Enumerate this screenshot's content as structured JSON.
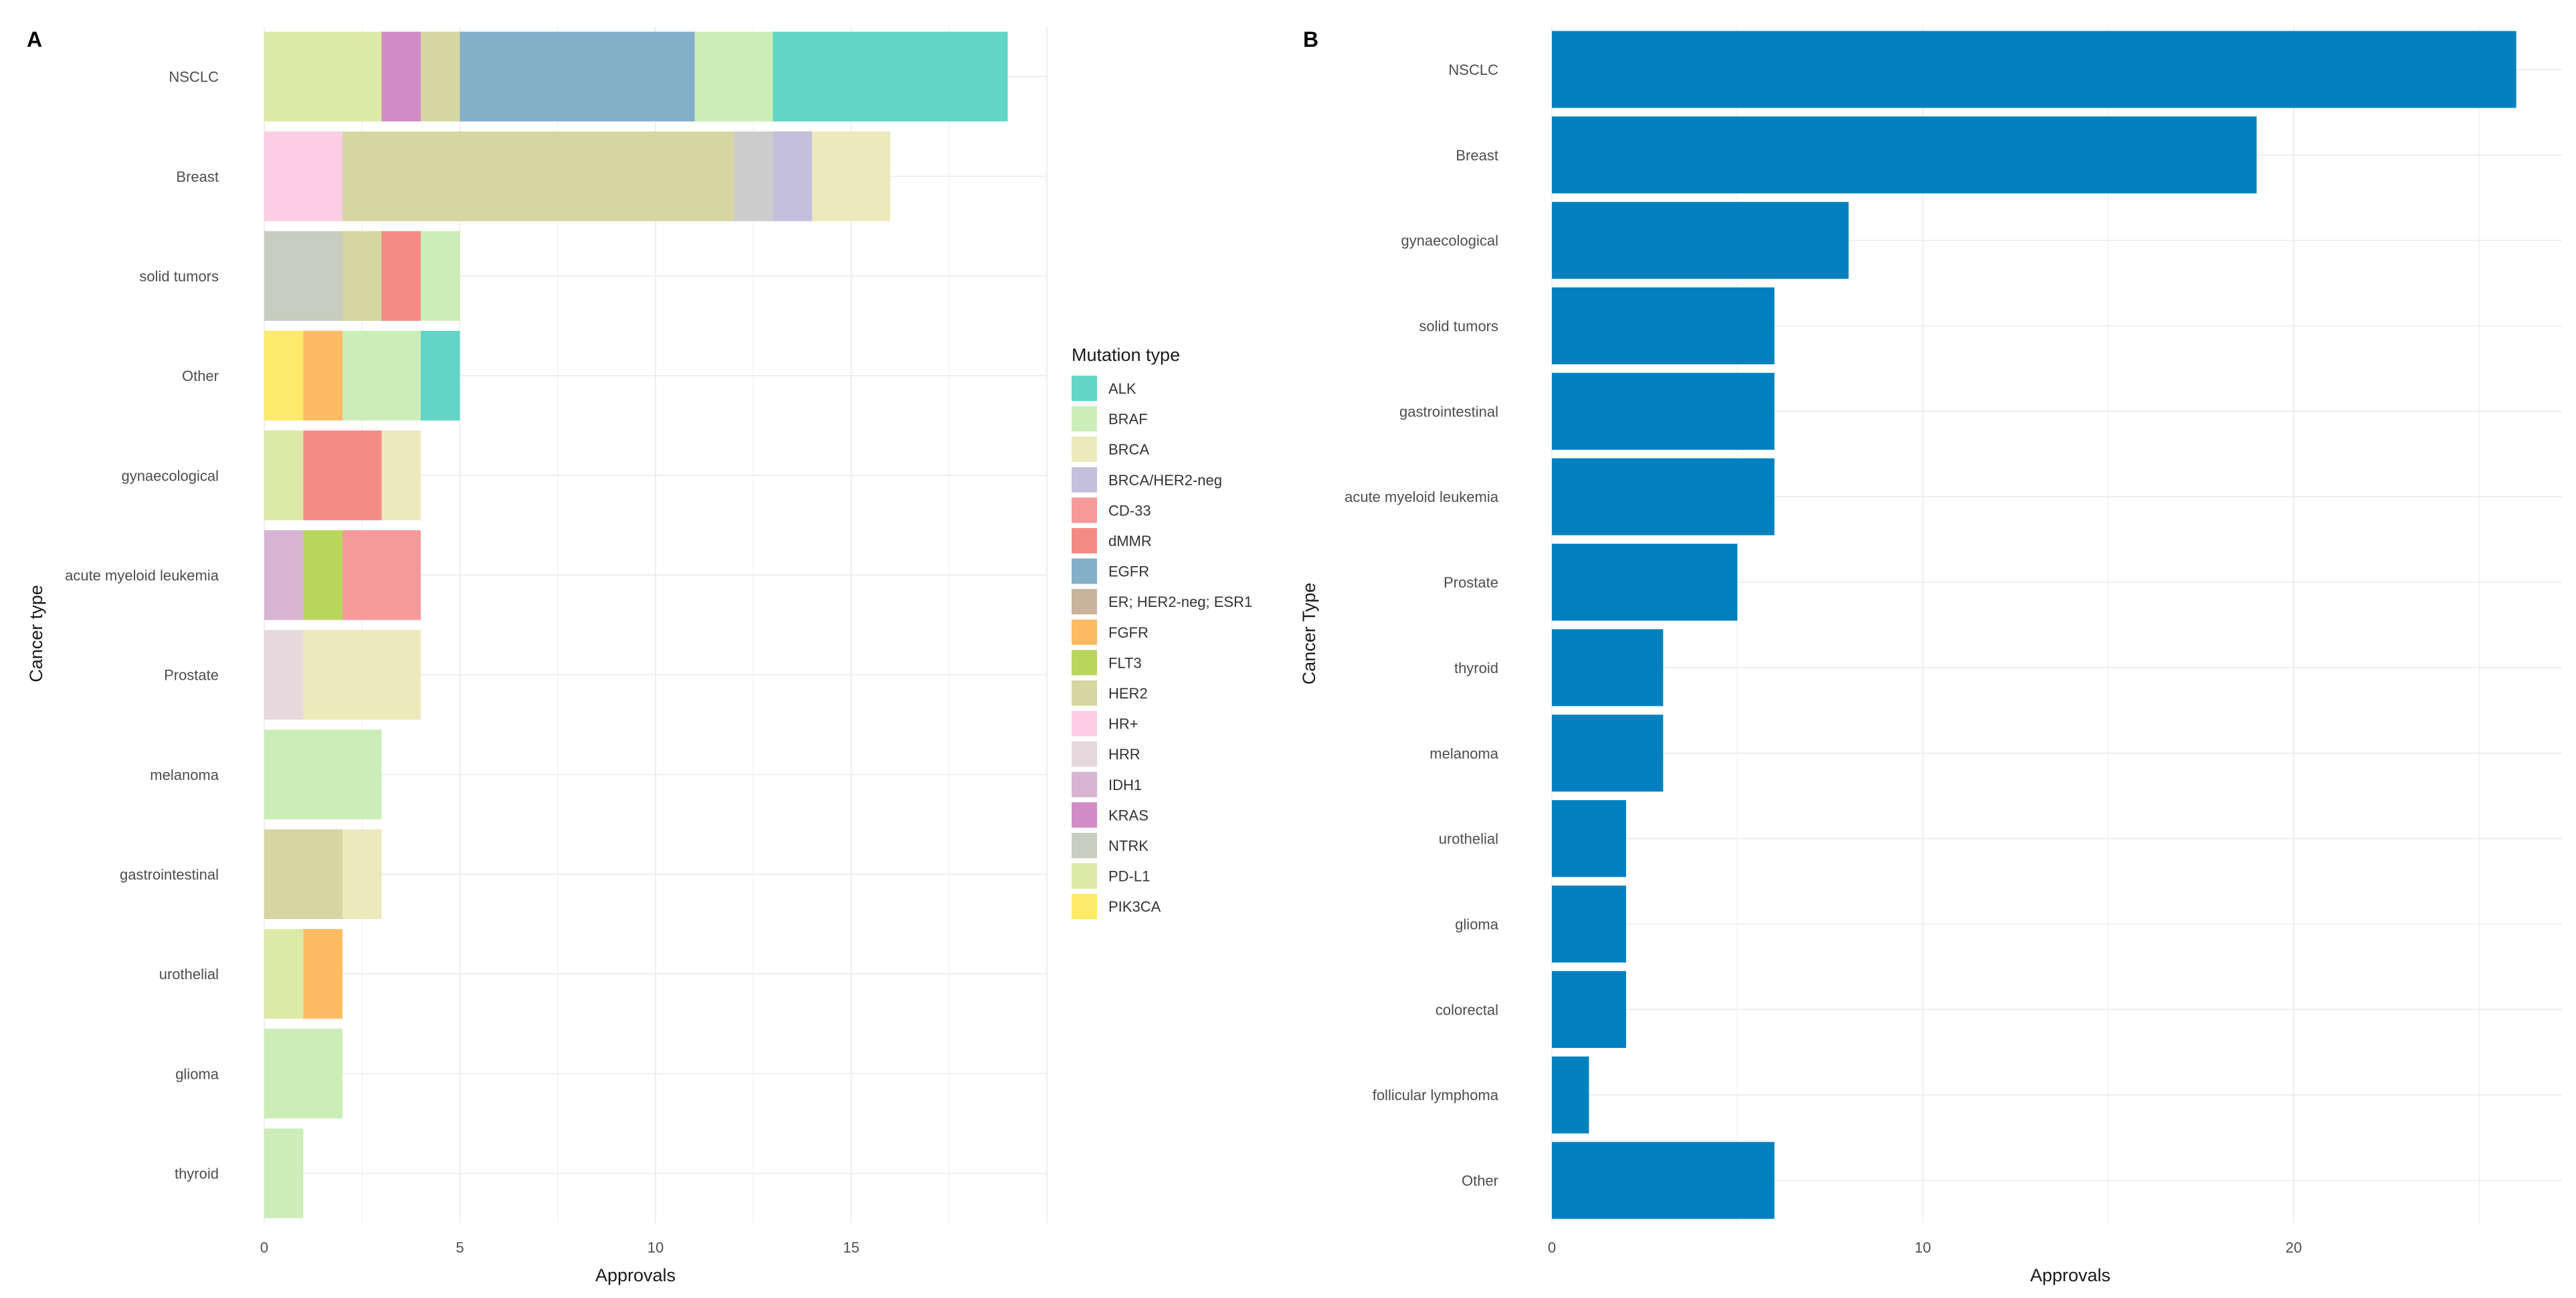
{
  "chart_data": [
    {
      "panel": "A",
      "type": "bar",
      "orientation": "horizontal",
      "stacked": true,
      "categories": [
        "NSCLC",
        "Breast",
        "solid tumors",
        "Other",
        "gynaecological",
        "acute myeloid leukemia",
        "Prostate",
        "melanoma",
        "gastrointestinal",
        "urothelial",
        "glioma",
        "thyroid"
      ],
      "segments": [
        [
          {
            "type": "PD-L1",
            "value": 3
          },
          {
            "type": "KRAS",
            "value": 1
          },
          {
            "type": "HER2",
            "value": 1
          },
          {
            "type": "EGFR",
            "value": 6
          },
          {
            "type": "BRAF",
            "value": 2
          },
          {
            "type": "ALK",
            "value": 6
          }
        ],
        [
          {
            "type": "HR+",
            "value": 2
          },
          {
            "type": "HER2",
            "value": 10
          },
          {
            "type": "ER+ HER2-neg ESR1",
            "value": 1
          },
          {
            "type": "BRCA/HER2-neg",
            "value": 1
          },
          {
            "type": "BRCA",
            "value": 2
          }
        ],
        [
          {
            "type": "NTRK",
            "value": 2
          },
          {
            "type": "HER2",
            "value": 1
          },
          {
            "type": "dMMR",
            "value": 1
          },
          {
            "type": "BRAF",
            "value": 1
          }
        ],
        [
          {
            "type": "PIK3CA",
            "value": 1
          },
          {
            "type": "FGFR",
            "value": 1
          },
          {
            "type": "BRAF",
            "value": 2
          },
          {
            "type": "ALK",
            "value": 1
          }
        ],
        [
          {
            "type": "PD-L1",
            "value": 1
          },
          {
            "type": "dMMR",
            "value": 2
          },
          {
            "type": "BRCA",
            "value": 1
          }
        ],
        [
          {
            "type": "IDH1",
            "value": 1
          },
          {
            "type": "FLT3",
            "value": 1
          },
          {
            "type": "CD-33",
            "value": 2
          }
        ],
        [
          {
            "type": "HRR",
            "value": 1
          },
          {
            "type": "BRCA",
            "value": 3
          }
        ],
        [
          {
            "type": "BRAF",
            "value": 3
          }
        ],
        [
          {
            "type": "HER2",
            "value": 2
          },
          {
            "type": "BRCA",
            "value": 1
          }
        ],
        [
          {
            "type": "PD-L1",
            "value": 1
          },
          {
            "type": "FGFR",
            "value": 1
          }
        ],
        [
          {
            "type": "BRAF",
            "value": 2
          }
        ],
        [
          {
            "type": "BRAF",
            "value": 1
          }
        ]
      ],
      "xlabel": "Approvals",
      "ylabel": "Cancer type",
      "xlim": [
        0,
        20
      ],
      "xticks": [
        0,
        5,
        10,
        15
      ],
      "legend": {
        "title": "Mutation type",
        "placement": "right",
        "entries": [
          {
            "name": "ALK",
            "color": "#62d5c8"
          },
          {
            "name": "BRAF",
            "color": "#ccedb8"
          },
          {
            "name": "BRCA",
            "color": "#ece9bd"
          },
          {
            "name": "BRCA/HER2-neg",
            "color": "#c3bfdc"
          },
          {
            "name": "CD-33",
            "color": "#f6999b"
          },
          {
            "name": "dMMR",
            "color": "#f38c85"
          },
          {
            "name": "EGFR",
            "color": "#83afc9"
          },
          {
            "name": "ER; HER2-neg; ESR1",
            "color": "#c8b49a"
          },
          {
            "name": "FGFR",
            "color": "#fdbb63"
          },
          {
            "name": "FLT3",
            "color": "#b9d65c"
          },
          {
            "name": "HER2",
            "color": "#d6d6a2"
          },
          {
            "name": "HR+",
            "color": "#fdcde3"
          },
          {
            "name": "HRR",
            "color": "#e6d8dd"
          },
          {
            "name": "IDH1",
            "color": "#d7b5d2"
          },
          {
            "name": "KRAS",
            "color": "#d18bc5"
          },
          {
            "name": "NTRK",
            "color": "#c8cdbf"
          },
          {
            "name": "PD-L1",
            "color": "#dde9a6"
          },
          {
            "name": "PIK3CA",
            "color": "#fde96a"
          }
        ]
      },
      "grid": true
    },
    {
      "panel": "B",
      "type": "bar",
      "orientation": "horizontal",
      "categories": [
        "NSCLC",
        "Breast",
        "gynaecological",
        "solid tumors",
        "gastrointestinal",
        "acute myeloid leukemia",
        "Prostate",
        "thyroid",
        "melanoma",
        "urothelial",
        "glioma",
        "colorectal",
        "follicular lymphoma",
        "Other"
      ],
      "values": [
        26,
        19,
        8,
        6,
        6,
        6,
        5,
        3,
        3,
        2,
        2,
        2,
        1,
        6
      ],
      "color": "#0080bf",
      "xlabel": "Approvals",
      "ylabel": "Cancer Type",
      "xlim": [
        0,
        27
      ],
      "xticks": [
        0,
        10,
        20
      ],
      "grid": true
    }
  ]
}
